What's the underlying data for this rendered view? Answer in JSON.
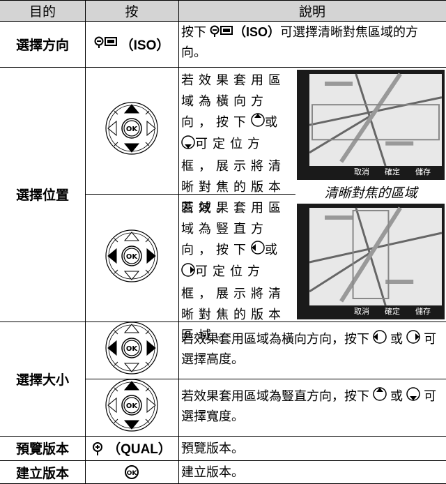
{
  "header": [
    "目的",
    "按",
    "說明"
  ],
  "rows": [
    {
      "purpose": "選擇方向",
      "button": "（ISO）",
      "description": [
        "按下",
        "（ISO）",
        "可選擇清晰對焦區域的方向。"
      ]
    },
    {
      "purpose": "選擇位置",
      "subrows": [
        {
          "description": [
            "若效果套用區域為橫向方向，按下",
            "或",
            "可定位方框，展示將清晰對焦的版本區域。"
          ]
        },
        {
          "description": [
            "若效果套用區域為豎直方向，按下",
            "或",
            "可定位方框，展示將清晰對焦的版本區域。"
          ]
        }
      ],
      "screen_caption": "清晰對焦的區域",
      "screen_labels": [
        "取消",
        "確定",
        "儲存"
      ]
    },
    {
      "purpose": "選擇大小",
      "subrows": [
        {
          "description": [
            "若效果套用區域為橫向方向，按下",
            "或",
            "可選擇高度。"
          ]
        },
        {
          "description": [
            "若效果套用區域為豎直方向，按下",
            "或",
            "可選擇寬度。"
          ]
        }
      ]
    },
    {
      "purpose": "預覽版本",
      "button": "（QUAL）",
      "description": [
        "預覽版本。"
      ]
    },
    {
      "purpose": "建立版本",
      "description": [
        "建立版本。"
      ]
    }
  ]
}
